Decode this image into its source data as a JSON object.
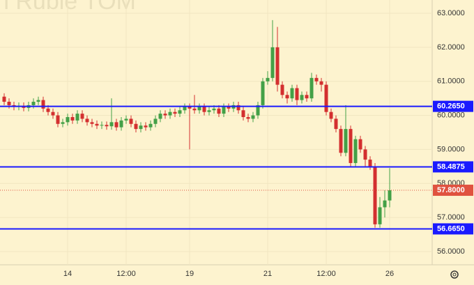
{
  "chart_data": {
    "type": "candlestick",
    "watermark": "n Ruble TOM",
    "categories": [
      null,
      null,
      null,
      null,
      null,
      null,
      null,
      null,
      null,
      null,
      null,
      null,
      null,
      "14",
      null,
      null,
      null,
      null,
      null,
      null,
      null,
      null,
      null,
      null,
      null,
      "12:00",
      null,
      null,
      null,
      null,
      null,
      null,
      null,
      null,
      null,
      null,
      null,
      null,
      "19",
      null,
      null,
      null,
      null,
      null,
      null,
      null,
      null,
      null,
      null,
      null,
      null,
      null,
      null,
      null,
      "21",
      null,
      null,
      null,
      null,
      null,
      null,
      null,
      null,
      null,
      null,
      null,
      "12:00",
      null,
      null,
      null,
      null,
      null,
      null,
      null,
      null,
      null,
      null,
      null,
      null,
      "26"
    ],
    "series": [
      {
        "up_color": "#43a047",
        "down_color": "#d32f2f",
        "open": [
          60.55,
          60.4,
          60.3,
          60.25,
          60.28,
          60.22,
          60.3,
          60.4,
          60.45,
          60.2,
          60.1,
          60.0,
          59.75,
          59.8,
          59.95,
          59.85,
          60.05,
          59.9,
          59.8,
          59.75,
          59.7,
          59.72,
          59.68,
          59.8,
          59.65,
          59.85,
          59.9,
          59.75,
          59.6,
          59.7,
          59.65,
          59.75,
          59.9,
          60.05,
          60.0,
          60.1,
          60.05,
          60.15,
          60.25,
          60.2,
          60.15,
          60.25,
          60.1,
          60.15,
          60.2,
          60.05,
          60.25,
          60.2,
          60.3,
          60.15,
          59.95,
          59.9,
          60.0,
          60.3,
          61.0,
          61.1,
          62.0,
          60.9,
          60.6,
          60.5,
          60.8,
          60.45,
          60.6,
          60.5,
          61.1,
          61.0,
          60.9,
          60.1,
          59.9,
          59.6,
          58.9,
          59.6,
          58.6,
          59.3,
          59.0,
          58.7,
          58.5,
          56.8,
          57.3,
          57.5
        ],
        "high": [
          60.65,
          60.5,
          60.4,
          60.38,
          60.38,
          60.4,
          60.5,
          60.55,
          60.55,
          60.3,
          60.2,
          60.1,
          59.9,
          60.05,
          60.05,
          60.15,
          60.15,
          60.0,
          59.9,
          59.85,
          59.82,
          59.82,
          60.5,
          59.9,
          59.95,
          60.0,
          60.0,
          59.85,
          59.8,
          59.8,
          59.85,
          60.0,
          60.15,
          60.15,
          60.2,
          60.2,
          60.25,
          60.35,
          60.35,
          60.6,
          60.35,
          60.35,
          60.25,
          60.3,
          60.3,
          60.35,
          60.35,
          60.4,
          60.4,
          60.25,
          60.05,
          60.1,
          60.4,
          61.1,
          61.3,
          62.8,
          62.6,
          61.0,
          60.7,
          60.9,
          60.9,
          60.7,
          60.7,
          61.25,
          61.2,
          61.1,
          61.0,
          60.2,
          60.0,
          59.7,
          60.3,
          59.7,
          59.4,
          59.4,
          59.1,
          58.8,
          58.6,
          57.6,
          57.8,
          58.45
        ],
        "low": [
          60.3,
          60.2,
          60.15,
          60.15,
          60.12,
          60.12,
          60.2,
          60.3,
          60.1,
          60.0,
          59.9,
          59.65,
          59.65,
          59.7,
          59.75,
          59.75,
          59.8,
          59.7,
          59.65,
          59.6,
          59.6,
          59.58,
          59.58,
          59.55,
          59.55,
          59.75,
          59.65,
          59.5,
          59.5,
          59.55,
          59.55,
          59.65,
          59.8,
          59.9,
          59.9,
          59.95,
          59.95,
          60.05,
          59.0,
          60.05,
          60.05,
          60.0,
          60.0,
          60.05,
          59.95,
          59.95,
          60.1,
          60.1,
          60.05,
          59.85,
          59.8,
          59.8,
          59.9,
          60.2,
          60.9,
          61.0,
          60.7,
          60.5,
          60.35,
          60.4,
          60.3,
          60.35,
          60.4,
          60.4,
          60.9,
          60.7,
          60.0,
          59.8,
          59.5,
          58.8,
          58.8,
          58.5,
          58.5,
          58.9,
          58.5,
          58.4,
          56.7,
          56.7,
          57.0,
          57.3
        ],
        "close": [
          60.4,
          60.3,
          60.25,
          60.28,
          60.22,
          60.3,
          60.4,
          60.45,
          60.2,
          60.1,
          60.0,
          59.75,
          59.8,
          59.95,
          59.85,
          60.05,
          59.9,
          59.8,
          59.75,
          59.7,
          59.72,
          59.68,
          59.8,
          59.65,
          59.85,
          59.9,
          59.75,
          59.6,
          59.7,
          59.65,
          59.75,
          59.9,
          60.05,
          60.0,
          60.1,
          60.05,
          60.15,
          60.25,
          60.2,
          60.15,
          60.25,
          60.1,
          60.15,
          60.2,
          60.05,
          60.25,
          60.2,
          60.3,
          60.15,
          59.95,
          59.9,
          60.0,
          60.3,
          61.0,
          61.1,
          62.0,
          60.9,
          60.6,
          60.5,
          60.8,
          60.45,
          60.6,
          60.5,
          61.1,
          61.0,
          60.9,
          60.1,
          59.9,
          59.6,
          58.9,
          59.6,
          58.6,
          59.3,
          59.0,
          58.7,
          58.5,
          56.8,
          57.3,
          57.5,
          57.8
        ]
      }
    ],
    "ylim": [
      55.61,
      63.39
    ],
    "yticks": [
      {
        "value": 56,
        "label": "56.0000"
      },
      {
        "value": 57,
        "label": "57.0000"
      },
      {
        "value": 58,
        "label": "58.0000"
      },
      {
        "value": 59,
        "label": "59.0000"
      },
      {
        "value": 60,
        "label": "60.0000"
      },
      {
        "value": 61,
        "label": "61.0000"
      },
      {
        "value": 62,
        "label": "62.0000"
      },
      {
        "value": 63,
        "label": "63.0000"
      }
    ],
    "levels": [
      {
        "value": 60.265,
        "label": "60.2650"
      },
      {
        "value": 58.4875,
        "label": "58.4875"
      },
      {
        "value": 56.665,
        "label": "56.6650"
      }
    ],
    "level_color": "#1a1aff",
    "last_price": {
      "value": 57.8,
      "label": "57.8000"
    },
    "last_color": "#e0523f",
    "grid": true
  }
}
